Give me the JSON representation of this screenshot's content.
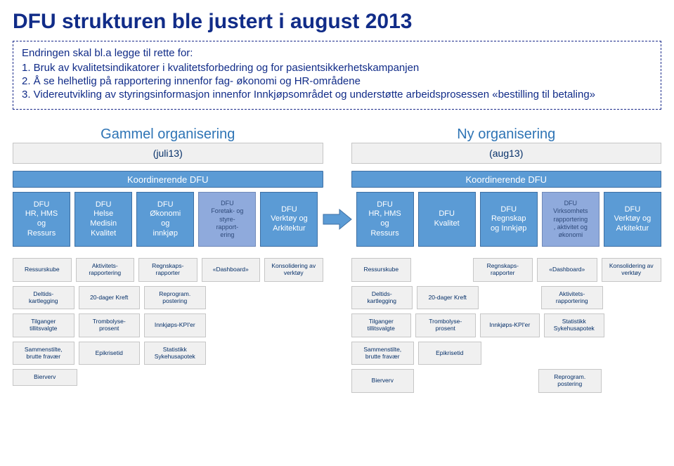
{
  "colors": {
    "title": "#112c88",
    "dashed_border": "#1a2a8a",
    "org_label": "#2e74b5",
    "koord_bg": "#5b9bd5",
    "koord_text": "#ffffff",
    "dfu_bg": "#5b9bd5",
    "dfu_border": "#3e6fa3",
    "dfu_alt_bg": "#8faadc",
    "dfu_alt_text": "#2f4a7a",
    "sub_bg": "#f0f0f0",
    "sub_border": "#c6c6c6",
    "sub_text": "#063069",
    "arrow": "#5b9bd5",
    "arrow_border": "#3e6fa3"
  },
  "title": "DFU strukturen ble justert i august 2013",
  "intro": {
    "lead": "Endringen skal bl.a legge til rette for:",
    "items": [
      "1.  Bruk av kvalitetsindikatorer i kvalitetsforbedring og for pasientsikkerhetskampanjen",
      "2.  Å se helhetlig på rapportering innenfor fag- økonomi og HR-områdene",
      "3.  Videreutvikling av styringsinformasjon innenfor Innkjøpsområdet og understøtte arbeidsprosessen «bestilling til betaling»"
    ]
  },
  "old": {
    "label": "Gammel organisering",
    "label_sub": "(juli13)",
    "koord": "Koordinerende DFU",
    "dfus": [
      "DFU\nHR, HMS\nog\nRessurs",
      "DFU\nHelse\nMedisin\nKvalitet",
      "DFU\nØkonomi\nog\ninnkjøp",
      "DFU\nForetak- og\nstyre-\nrapport-\nering",
      "DFU\nVerktøy og\nArkitektur"
    ],
    "dfus_alt_index": 3,
    "sub_cell_width": 100,
    "sub_rows": [
      [
        "Ressurskube",
        "Aktivitets-\nrapportering",
        "Regnskaps-\nrapporter",
        "«Dashboard»",
        "Konsolidering av\nverktøy"
      ],
      [
        "Deltids-\nkartlegging",
        "20-dager Kreft",
        "Reprogram.\npostering",
        "",
        ""
      ],
      [
        "Tilganger\ntillitsvalgte",
        "Trombolyse-\nprosent",
        "Innkjøps-KPI'er",
        "",
        ""
      ],
      [
        "Sammenstilte,\nbrutte fravær",
        "Epikrisetid",
        "Statistikk\nSykehusapotek",
        "",
        ""
      ],
      [
        "Bierverv",
        "",
        "",
        "",
        ""
      ]
    ]
  },
  "new": {
    "label": "Ny organisering",
    "label_sub": "(aug13)",
    "koord": "Koordinerende DFU",
    "dfus": [
      "DFU\nHR, HMS\nog\nRessurs",
      "DFU\nKvalitet",
      "DFU\nRegnskap\nog Innkjøp",
      "DFU\nVirksomhets\nrapportering\n, aktivitet og\nøkonomi",
      "DFU\nVerktøy og\nArkitektur"
    ],
    "dfus_alt_index": 3,
    "sub_cell_width": 100,
    "sub_rows": [
      [
        "Ressurskube",
        "",
        "Regnskaps-\nrapporter",
        "«Dashboard»",
        "Konsolidering av\nverktøy"
      ],
      [
        "Deltids-\nkartlegging",
        "20-dager Kreft",
        "",
        "Aktivitets-\nrapportering",
        ""
      ],
      [
        "Tilganger\ntillitsvalgte",
        "Trombolyse-\nprosent",
        "Innkjøps-KPI'er",
        "Statistikk\nSykehusapotek",
        ""
      ],
      [
        "Sammenstilte,\nbrutte fravær",
        "Epikrisetid",
        "",
        "",
        ""
      ],
      [
        "Bierverv",
        "",
        "",
        "Reprogram.\npostering",
        ""
      ]
    ]
  },
  "page_number": ""
}
